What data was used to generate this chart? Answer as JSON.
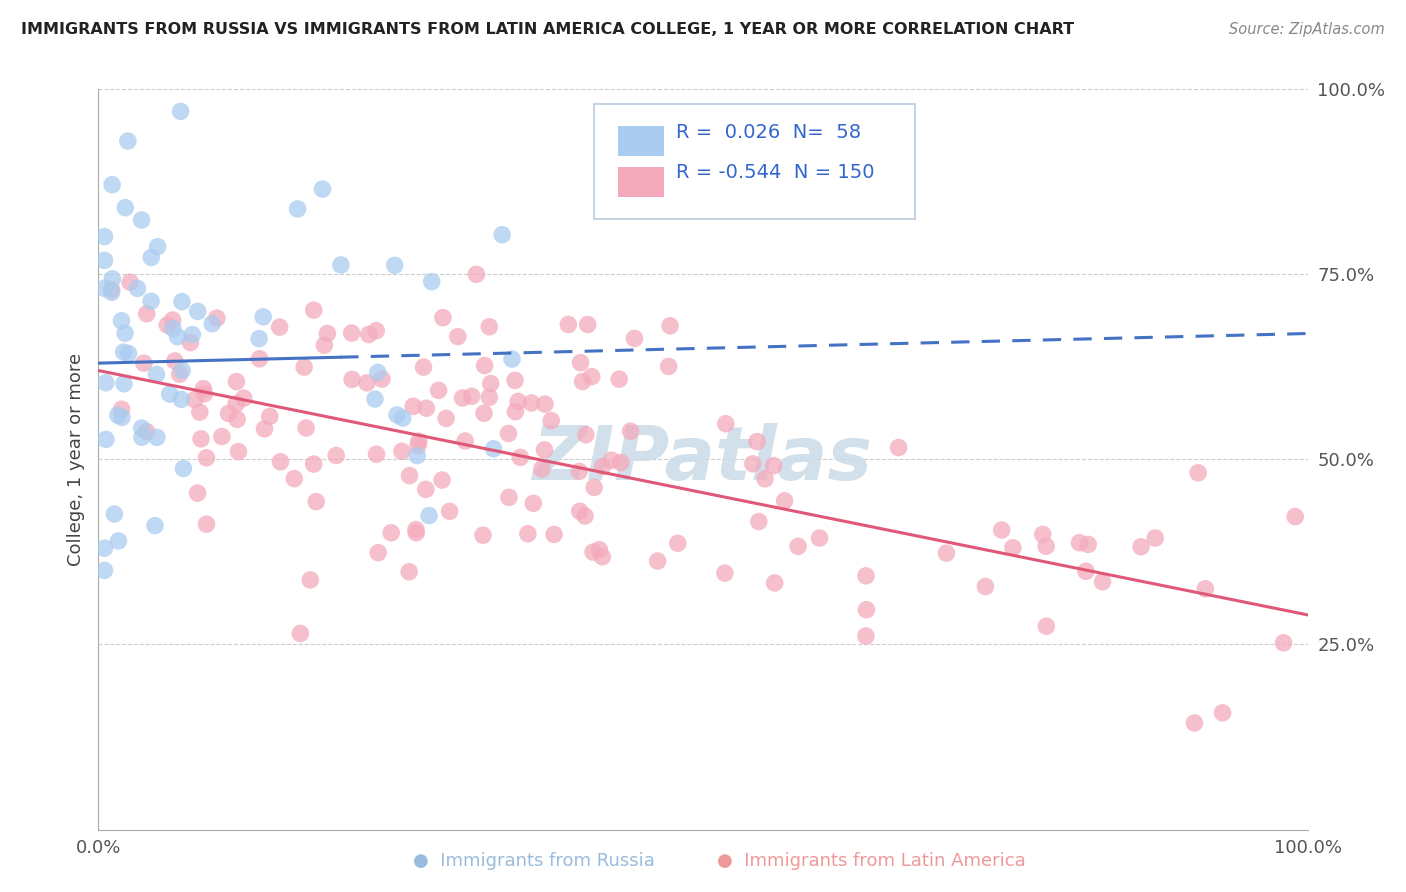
{
  "title": "IMMIGRANTS FROM RUSSIA VS IMMIGRANTS FROM LATIN AMERICA COLLEGE, 1 YEAR OR MORE CORRELATION CHART",
  "source": "Source: ZipAtlas.com",
  "ylabel": "College, 1 year or more",
  "legend_R1": "0.026",
  "legend_N1": "58",
  "legend_R2": "-0.544",
  "legend_N2": "150",
  "color_russia": "#aaccf0",
  "color_latam": "#f4aabc",
  "line_color_russia": "#4472c4",
  "line_color_latam": "#e05878",
  "watermark": "ZIPatlas",
  "watermark_color": "#ccdde8",
  "grid_color": "#cccccc",
  "spine_color": "#aaaaaa",
  "tick_color": "#555555",
  "title_color": "#222222",
  "source_color": "#888888",
  "legend_text_color": "#3366cc",
  "bottom_label_color_russia": "#99bbdd",
  "bottom_label_color_latam": "#ee9999",
  "xlim": [
    0.0,
    1.0
  ],
  "ylim": [
    0.0,
    1.0
  ],
  "russia_line_x": [
    0.0,
    0.75
  ],
  "russia_line_y": [
    0.63,
    0.66
  ],
  "latam_line_x": [
    0.0,
    1.0
  ],
  "latam_line_y": [
    0.62,
    0.29
  ]
}
